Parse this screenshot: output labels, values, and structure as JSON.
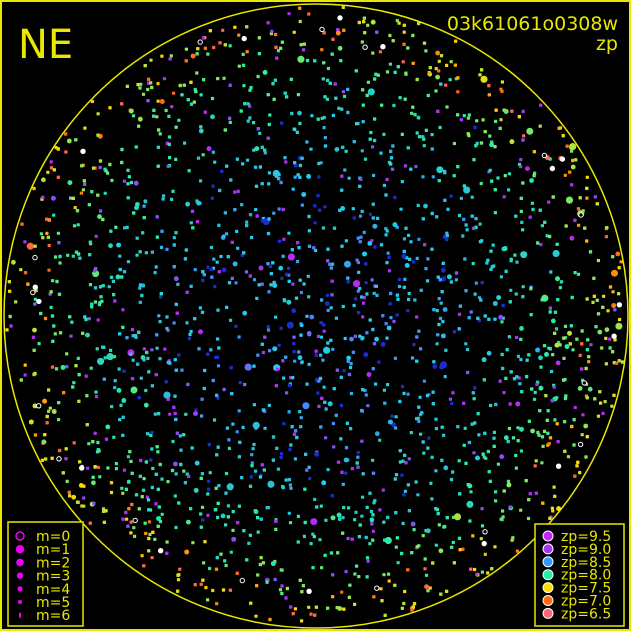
{
  "chart_data": {
    "type": "scatter",
    "title": "NE",
    "frame_id": "03k61061o0308w",
    "quantity": "zp",
    "grid": false,
    "projection": "all-sky circle",
    "size_legend": {
      "placement": "bottom-left",
      "entries": [
        {
          "label": "m=0",
          "style": "ring"
        },
        {
          "label": "m=1"
        },
        {
          "label": "m=2"
        },
        {
          "label": "m=3"
        },
        {
          "label": "m=4"
        },
        {
          "label": "m=5"
        },
        {
          "label": "m=6"
        }
      ],
      "color": "#ee00ee"
    },
    "color_legend": {
      "placement": "bottom-right",
      "entries": [
        {
          "label": "zp=9.5",
          "value": 9.5,
          "color": "#cc22ff"
        },
        {
          "label": "zp=9.0",
          "value": 9.0,
          "color": "#aa33ee"
        },
        {
          "label": "zp=8.5",
          "value": 8.5,
          "color": "#3399ff"
        },
        {
          "label": "zp=8.0",
          "value": 8.0,
          "color": "#22eeaa"
        },
        {
          "label": "zp=7.5",
          "value": 7.5,
          "color": "#ffdd00"
        },
        {
          "label": "zp=7.0",
          "value": 7.0,
          "color": "#ff6a10"
        },
        {
          "label": "zp=6.5",
          "value": 6.5,
          "color": "#ff6677"
        }
      ]
    },
    "distribution": "zp near 8.5 at center, decreasing toward 7.5–8.0 at horizon"
  },
  "colors": {
    "frame": "#e8e800",
    "background": "#000000"
  }
}
